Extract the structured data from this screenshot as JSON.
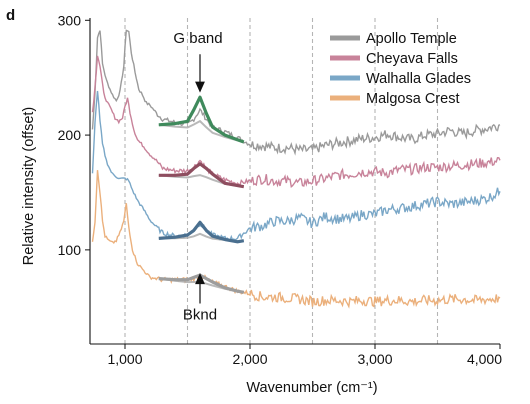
{
  "panel_label": "d",
  "chart_data": {
    "type": "line",
    "title": "",
    "xlabel": "Wavenumber (cm⁻¹)",
    "ylabel": "Relative intensity (offset)",
    "xlim": [
      720,
      4000
    ],
    "ylim": [
      18,
      302
    ],
    "x_ticks": [
      1000,
      2000,
      3000,
      4000
    ],
    "x_tick_labels": [
      "1,000",
      "2,000",
      "3,000",
      "4,000"
    ],
    "y_ticks": [
      100,
      200,
      300
    ],
    "y_tick_labels": [
      "100",
      "200",
      "300"
    ],
    "grid": "dashed vertical lines at every 500 cm⁻¹",
    "legend_position": "top-right",
    "annotations": {
      "g_band": {
        "text": "G band",
        "x": 1600,
        "y": 233
      },
      "bknd": {
        "text": "Bknd",
        "x": 1600,
        "y": 82
      }
    },
    "series": [
      {
        "name": "Apollo Temple",
        "color": "#9a9a9a",
        "points": [
          [
            740,
            205
          ],
          [
            760,
            238
          ],
          [
            780,
            285
          ],
          [
            800,
            292
          ],
          [
            820,
            262
          ],
          [
            850,
            248
          ],
          [
            880,
            240
          ],
          [
            900,
            235
          ],
          [
            930,
            230
          ],
          [
            960,
            238
          ],
          [
            990,
            260
          ],
          [
            1010,
            292
          ],
          [
            1030,
            290
          ],
          [
            1050,
            272
          ],
          [
            1080,
            255
          ],
          [
            1110,
            240
          ],
          [
            1140,
            235
          ],
          [
            1170,
            228
          ],
          [
            1200,
            226
          ],
          [
            1230,
            222
          ],
          [
            1260,
            218
          ],
          [
            1300,
            214
          ],
          [
            1400,
            211
          ],
          [
            1500,
            209
          ],
          [
            1550,
            214
          ],
          [
            1600,
            222
          ],
          [
            1650,
            214
          ],
          [
            1700,
            207
          ],
          [
            1800,
            203
          ],
          [
            1900,
            198
          ],
          [
            2000,
            192
          ],
          [
            2100,
            191
          ],
          [
            2200,
            189
          ],
          [
            2300,
            189
          ],
          [
            2400,
            187
          ],
          [
            2500,
            187
          ],
          [
            2600,
            191
          ],
          [
            2700,
            193
          ],
          [
            2800,
            195
          ],
          [
            2900,
            197
          ],
          [
            3000,
            198
          ],
          [
            3100,
            201
          ],
          [
            3200,
            198
          ],
          [
            3300,
            196
          ],
          [
            3400,
            200
          ],
          [
            3500,
            201
          ],
          [
            3600,
            204
          ],
          [
            3700,
            201
          ],
          [
            3800,
            204
          ],
          [
            3900,
            206
          ],
          [
            4000,
            209
          ]
        ],
        "fit_points": [
          [
            1270,
            209
          ],
          [
            1400,
            210
          ],
          [
            1500,
            212
          ],
          [
            1550,
            222
          ],
          [
            1600,
            233
          ],
          [
            1650,
            219
          ],
          [
            1700,
            207
          ],
          [
            1800,
            200
          ],
          [
            1900,
            196
          ],
          [
            1950,
            194
          ]
        ]
      },
      {
        "name": "Cheyava Falls",
        "color": "#c8839a",
        "points": [
          [
            740,
            220
          ],
          [
            760,
            242
          ],
          [
            780,
            270
          ],
          [
            800,
            260
          ],
          [
            830,
            236
          ],
          [
            860,
            228
          ],
          [
            890,
            222
          ],
          [
            920,
            215
          ],
          [
            950,
            212
          ],
          [
            980,
            215
          ],
          [
            1000,
            225
          ],
          [
            1020,
            232
          ],
          [
            1040,
            220
          ],
          [
            1070,
            205
          ],
          [
            1100,
            196
          ],
          [
            1150,
            190
          ],
          [
            1200,
            183
          ],
          [
            1250,
            178
          ],
          [
            1300,
            171
          ],
          [
            1400,
            169
          ],
          [
            1500,
            169
          ],
          [
            1550,
            172
          ],
          [
            1600,
            178
          ],
          [
            1650,
            171
          ],
          [
            1700,
            166
          ],
          [
            1800,
            161
          ],
          [
            1900,
            158
          ],
          [
            2000,
            160
          ],
          [
            2100,
            162
          ],
          [
            2200,
            160
          ],
          [
            2300,
            160
          ],
          [
            2400,
            158
          ],
          [
            2500,
            160
          ],
          [
            2600,
            162
          ],
          [
            2700,
            165
          ],
          [
            2800,
            166
          ],
          [
            2900,
            168
          ],
          [
            3000,
            168
          ],
          [
            3100,
            167
          ],
          [
            3200,
            170
          ],
          [
            3300,
            170
          ],
          [
            3400,
            172
          ],
          [
            3500,
            172
          ],
          [
            3600,
            173
          ],
          [
            3700,
            174
          ],
          [
            3800,
            175
          ],
          [
            3900,
            176
          ],
          [
            4000,
            178
          ]
        ],
        "fit_points": [
          [
            1270,
            165
          ],
          [
            1400,
            165
          ],
          [
            1500,
            166
          ],
          [
            1550,
            171
          ],
          [
            1600,
            175
          ],
          [
            1650,
            171
          ],
          [
            1700,
            166
          ],
          [
            1800,
            158
          ],
          [
            1900,
            156
          ],
          [
            1950,
            155
          ]
        ]
      },
      {
        "name": "Walhalla Glades",
        "color": "#7aa7c7",
        "points": [
          [
            740,
            166
          ],
          [
            760,
            212
          ],
          [
            780,
            239
          ],
          [
            800,
            212
          ],
          [
            820,
            192
          ],
          [
            850,
            178
          ],
          [
            880,
            170
          ],
          [
            900,
            166
          ],
          [
            930,
            164
          ],
          [
            960,
            162
          ],
          [
            990,
            162
          ],
          [
            1010,
            162
          ],
          [
            1030,
            160
          ],
          [
            1060,
            152
          ],
          [
            1100,
            143
          ],
          [
            1150,
            135
          ],
          [
            1200,
            126
          ],
          [
            1250,
            120
          ],
          [
            1300,
            115
          ],
          [
            1400,
            112
          ],
          [
            1500,
            113
          ],
          [
            1550,
            117
          ],
          [
            1600,
            123
          ],
          [
            1650,
            117
          ],
          [
            1700,
            113
          ],
          [
            1800,
            110
          ],
          [
            1900,
            110
          ],
          [
            2000,
            119
          ],
          [
            2100,
            121
          ],
          [
            2200,
            125
          ],
          [
            2300,
            125
          ],
          [
            2400,
            128
          ],
          [
            2500,
            123
          ],
          [
            2600,
            129
          ],
          [
            2700,
            127
          ],
          [
            2800,
            127
          ],
          [
            2900,
            131
          ],
          [
            3000,
            131
          ],
          [
            3100,
            135
          ],
          [
            3200,
            136
          ],
          [
            3300,
            138
          ],
          [
            3400,
            140
          ],
          [
            3500,
            142
          ],
          [
            3600,
            140
          ],
          [
            3700,
            141
          ],
          [
            3800,
            143
          ],
          [
            3900,
            145
          ],
          [
            4000,
            151
          ]
        ],
        "fit_points": [
          [
            1270,
            110
          ],
          [
            1400,
            111
          ],
          [
            1500,
            113
          ],
          [
            1550,
            117
          ],
          [
            1600,
            124
          ],
          [
            1650,
            117
          ],
          [
            1700,
            112
          ],
          [
            1800,
            109
          ],
          [
            1900,
            107
          ],
          [
            1950,
            108
          ]
        ]
      },
      {
        "name": "Malgosa Crest",
        "color": "#ebb07c",
        "points": [
          [
            740,
            108
          ],
          [
            760,
            125
          ],
          [
            780,
            170
          ],
          [
            800,
            150
          ],
          [
            820,
            125
          ],
          [
            840,
            112
          ],
          [
            870,
            108
          ],
          [
            900,
            106
          ],
          [
            930,
            108
          ],
          [
            960,
            115
          ],
          [
            990,
            125
          ],
          [
            1010,
            140
          ],
          [
            1030,
            120
          ],
          [
            1060,
            100
          ],
          [
            1100,
            88
          ],
          [
            1150,
            82
          ],
          [
            1200,
            76
          ],
          [
            1300,
            74
          ],
          [
            1400,
            74
          ],
          [
            1500,
            74
          ],
          [
            1550,
            75
          ],
          [
            1600,
            78
          ],
          [
            1650,
            75
          ],
          [
            1700,
            72
          ],
          [
            1800,
            68
          ],
          [
            1900,
            64
          ],
          [
            2000,
            62
          ],
          [
            2100,
            59
          ],
          [
            2200,
            59
          ],
          [
            2300,
            58
          ],
          [
            2400,
            57
          ],
          [
            2500,
            55
          ],
          [
            2600,
            56
          ],
          [
            2700,
            56
          ],
          [
            2800,
            55
          ],
          [
            2900,
            56
          ],
          [
            3000,
            55
          ],
          [
            3100,
            56
          ],
          [
            3200,
            56
          ],
          [
            3300,
            55
          ],
          [
            3400,
            56
          ],
          [
            3500,
            56
          ],
          [
            3600,
            57
          ],
          [
            3700,
            57
          ],
          [
            3800,
            56
          ],
          [
            3900,
            57
          ],
          [
            4000,
            58
          ]
        ],
        "fit_points": [
          [
            1270,
            75
          ],
          [
            1400,
            74
          ],
          [
            1500,
            74
          ],
          [
            1550,
            76
          ],
          [
            1600,
            78
          ],
          [
            1650,
            75
          ],
          [
            1700,
            72
          ],
          [
            1800,
            67
          ],
          [
            1900,
            64
          ],
          [
            1950,
            63
          ]
        ]
      }
    ]
  }
}
